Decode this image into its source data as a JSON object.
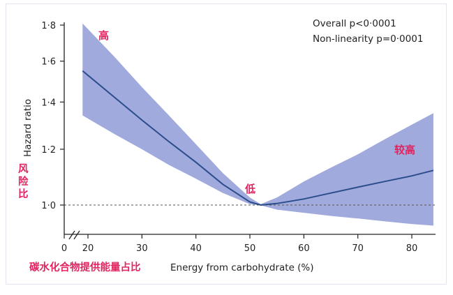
{
  "chart_data": {
    "type": "line",
    "xlabel": "Energy from carbohydrate (%)",
    "xlabel_cn": "碳水化合物提供能量占比",
    "ylabel": "Hazard ratio",
    "ylabel_cn": "风险比",
    "xlim": [
      0,
      84
    ],
    "ylim": [
      0.95,
      1.85
    ],
    "y_scale": "log",
    "x_ticks": [
      "0",
      "20",
      "30",
      "40",
      "50",
      "60",
      "70",
      "80"
    ],
    "y_ticks": [
      "1·0",
      "1·2",
      "1·4",
      "1·6",
      "1·8"
    ],
    "x_axis_break": true,
    "reference_line": 1.0,
    "stats": [
      "Overall p<0·0001",
      "Non-linearity p=0·0001"
    ],
    "annotations": [
      "高",
      "低",
      "较高"
    ],
    "series": [
      {
        "x": [
          19,
          25,
          30,
          35,
          40,
          45,
          50,
          52,
          55,
          60,
          65,
          70,
          75,
          80,
          84
        ],
        "y": [
          1.55,
          1.42,
          1.32,
          1.23,
          1.15,
          1.07,
          1.01,
          1.0,
          1.005,
          1.02,
          1.04,
          1.06,
          1.08,
          1.1,
          1.12
        ],
        "lower": [
          1.34,
          1.26,
          1.2,
          1.14,
          1.09,
          1.04,
          1.003,
          0.999,
          0.985,
          0.975,
          0.965,
          0.957,
          0.948,
          0.94,
          0.935
        ],
        "upper": [
          1.81,
          1.62,
          1.47,
          1.34,
          1.22,
          1.11,
          1.025,
          1.003,
          1.025,
          1.08,
          1.13,
          1.18,
          1.24,
          1.3,
          1.35
        ],
        "color": "#2b4d8c",
        "band_color": "#8f9bd7"
      }
    ]
  }
}
